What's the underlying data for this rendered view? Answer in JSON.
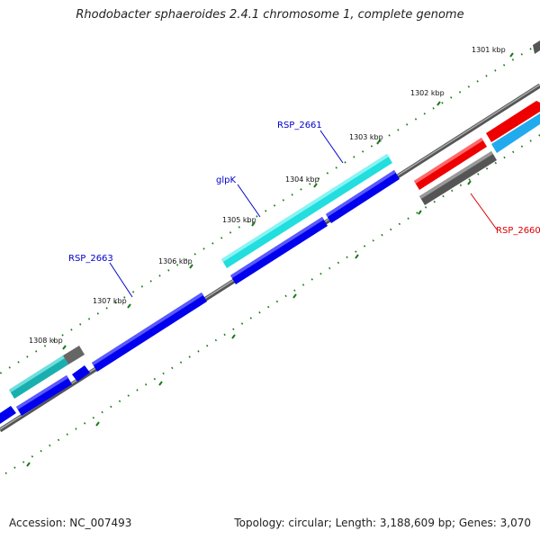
{
  "title": "Rhodobacter sphaeroides 2.4.1 chromosome 1, complete genome",
  "accession_label": "Accession: NC_007493",
  "summary_label": "Topology: circular; Length: 3,188,609 bp; Genes: 3,070",
  "colors": {
    "backbone": "#777777",
    "tick": "#1a7a1a",
    "blue_gene": "#0000ee",
    "cyan_gene": "#22dede",
    "teal_gene": "#1aafaf",
    "red_gene": "#ee0000",
    "gray_gene": "#666666",
    "skyblue_gene": "#22aaee",
    "blue_label": "#0000cc",
    "red_label": "#dd0000"
  },
  "kbp_labels": [
    "1301 kbp",
    "1302 kbp",
    "1303 kbp",
    "1304 kbp",
    "1305 kbp",
    "1306 kbp",
    "1307 kbp",
    "1308 kbp"
  ],
  "gene_labels": [
    {
      "name": "RSP_2661",
      "color": "blue"
    },
    {
      "name": "glpK",
      "color": "blue"
    },
    {
      "name": "RSP_2663",
      "color": "blue"
    },
    {
      "name": "RSP_2660",
      "color": "red"
    }
  ]
}
